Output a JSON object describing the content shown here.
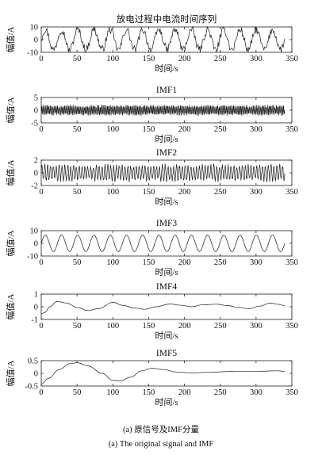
{
  "chart_data": [
    {
      "type": "line",
      "title": "放电过程中电流时间序列",
      "xlabel": "时间/s",
      "ylabel": "幅值/A",
      "xlim": [
        0,
        350
      ],
      "ylim": [
        -10,
        10
      ],
      "xticks": [
        "0",
        "50",
        "100",
        "150",
        "200",
        "250",
        "300",
        "350"
      ],
      "yticks": [
        "10",
        "0",
        "-10"
      ],
      "grid": false,
      "signal": {
        "duration": 340,
        "cycles": 15,
        "amplitude": 8,
        "noise": 3.5,
        "offset": 0
      }
    },
    {
      "type": "line",
      "title": "IMF1",
      "xlabel": "时间/s",
      "ylabel": "幅值/A",
      "xlim": [
        0,
        350
      ],
      "ylim": [
        -5,
        5
      ],
      "xticks": [
        "0",
        "50",
        "100",
        "150",
        "200",
        "250",
        "300",
        "350"
      ],
      "yticks": [
        "5",
        "0",
        "-5"
      ],
      "grid": false,
      "signal": {
        "duration": 340,
        "cycles": 170,
        "amplitude": 1.6,
        "noise": 0.6,
        "offset": 0
      }
    },
    {
      "type": "line",
      "title": "IMF2",
      "xlabel": "时间/s",
      "ylabel": "幅值/A",
      "xlim": [
        0,
        350
      ],
      "ylim": [
        -2,
        2
      ],
      "xticks": [
        "0",
        "50",
        "100",
        "150",
        "200",
        "250",
        "300",
        "350"
      ],
      "yticks": [
        "2",
        "0",
        "-2"
      ],
      "grid": false,
      "signal": {
        "duration": 340,
        "cycles": 85,
        "amplitude": 1.1,
        "noise": 0.4,
        "offset": 0
      }
    },
    {
      "type": "line",
      "title": "IMF3",
      "xlabel": "时间/s",
      "ylabel": "幅值/A",
      "xlim": [
        0,
        350
      ],
      "ylim": [
        -10,
        10
      ],
      "xticks": [
        "0",
        "50",
        "100",
        "150",
        "200",
        "250",
        "300",
        "350"
      ],
      "yticks": [
        "10",
        "0",
        "-10"
      ],
      "grid": false,
      "signal": {
        "duration": 340,
        "cycles": 15,
        "amplitude": 6.5,
        "noise": 0,
        "offset": 0
      }
    },
    {
      "type": "line",
      "title": "IMF4",
      "xlabel": "时间/s",
      "ylabel": "幅值/A",
      "xlim": [
        0,
        350
      ],
      "ylim": [
        -1,
        1
      ],
      "xticks": [
        "0",
        "50",
        "100",
        "150",
        "200",
        "250",
        "300",
        "350"
      ],
      "yticks": [
        "1",
        "0",
        "-1"
      ],
      "grid": false,
      "points": [
        [
          0,
          -0.55
        ],
        [
          5,
          -0.45
        ],
        [
          12,
          0.0
        ],
        [
          22,
          0.42
        ],
        [
          35,
          0.3
        ],
        [
          50,
          -0.05
        ],
        [
          65,
          -0.3
        ],
        [
          80,
          -0.15
        ],
        [
          100,
          0.35
        ],
        [
          115,
          0.1
        ],
        [
          130,
          -0.1
        ],
        [
          145,
          -0.2
        ],
        [
          160,
          0.0
        ],
        [
          180,
          0.22
        ],
        [
          195,
          0.12
        ],
        [
          210,
          0.0
        ],
        [
          225,
          0.15
        ],
        [
          245,
          0.2
        ],
        [
          260,
          0.1
        ],
        [
          275,
          -0.05
        ],
        [
          290,
          -0.15
        ],
        [
          305,
          0.05
        ],
        [
          320,
          0.3
        ],
        [
          330,
          0.2
        ],
        [
          340,
          0.1
        ]
      ]
    },
    {
      "type": "line",
      "title": "IMF5",
      "xlabel": "时间/s",
      "ylabel": "幅值/A",
      "xlim": [
        0,
        350
      ],
      "ylim": [
        -0.5,
        0.5
      ],
      "xticks": [
        "0",
        "50",
        "100",
        "150",
        "200",
        "250",
        "300",
        "350"
      ],
      "yticks": [
        "0.5",
        "0",
        "-0.5"
      ],
      "grid": false,
      "points": [
        [
          0,
          -0.42
        ],
        [
          10,
          -0.2
        ],
        [
          25,
          0.15
        ],
        [
          40,
          0.38
        ],
        [
          50,
          0.42
        ],
        [
          65,
          0.3
        ],
        [
          85,
          0.0
        ],
        [
          100,
          -0.28
        ],
        [
          110,
          -0.3
        ],
        [
          125,
          -0.15
        ],
        [
          140,
          0.1
        ],
        [
          155,
          0.2
        ],
        [
          170,
          0.15
        ],
        [
          190,
          0.05
        ],
        [
          210,
          0.02
        ],
        [
          240,
          0.05
        ],
        [
          270,
          0.08
        ],
        [
          300,
          0.08
        ],
        [
          330,
          0.1
        ],
        [
          340,
          0.08
        ]
      ]
    }
  ],
  "caption": {
    "zh": "(a) 原信号及IMF分量",
    "en": "(a) The original signal and IMF"
  },
  "colors": {
    "line": "#1a1a1a",
    "axis": "#222222",
    "background": "#ffffff"
  }
}
